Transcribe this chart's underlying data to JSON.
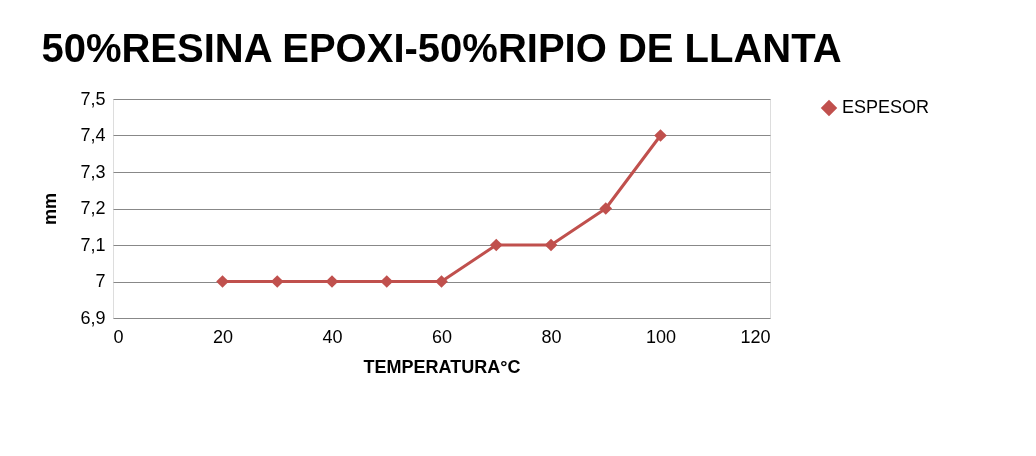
{
  "chart_data": {
    "type": "line",
    "title": "50%RESINA EPOXI-50%RIPIO DE LLANTA",
    "xlabel": "TEMPERATURA°C",
    "ylabel": "mm",
    "x": [
      20,
      30,
      40,
      50,
      60,
      70,
      80,
      90,
      100
    ],
    "series": [
      {
        "name": "ESPESOR",
        "color": "#c0504d",
        "values": [
          7,
          7,
          7,
          7,
          7,
          7.1,
          7.1,
          7.2,
          7.4
        ]
      }
    ],
    "xlim": [
      0,
      120
    ],
    "xticks": [
      0,
      20,
      40,
      60,
      80,
      100,
      120
    ],
    "ylim": [
      6.9,
      7.5
    ],
    "yticks": [
      {
        "value": 6.9,
        "label": "6,9"
      },
      7,
      {
        "value": 7.1,
        "label": "7,1"
      },
      {
        "value": 7.2,
        "label": "7,2"
      },
      {
        "value": 7.3,
        "label": "7,3"
      },
      {
        "value": 7.4,
        "label": "7,4"
      },
      {
        "value": 7.5,
        "label": "7,5"
      }
    ],
    "grid": "y",
    "legend": "right",
    "marker": "diamond",
    "line_style": "solid"
  }
}
